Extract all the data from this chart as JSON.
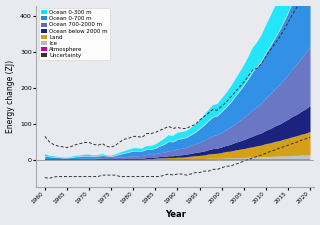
{
  "years": [
    1960,
    1961,
    1962,
    1963,
    1964,
    1965,
    1966,
    1967,
    1968,
    1969,
    1970,
    1971,
    1972,
    1973,
    1974,
    1975,
    1976,
    1977,
    1978,
    1979,
    1980,
    1981,
    1982,
    1983,
    1984,
    1985,
    1986,
    1987,
    1988,
    1989,
    1990,
    1991,
    1992,
    1993,
    1994,
    1995,
    1996,
    1997,
    1998,
    1999,
    2000,
    2001,
    2002,
    2003,
    2004,
    2005,
    2006,
    2007,
    2008,
    2009,
    2010,
    2011,
    2012,
    2013,
    2014,
    2015,
    2016,
    2017,
    2018,
    2019,
    2020
  ],
  "ocean_0_700": [
    8,
    5,
    4,
    3,
    2,
    2,
    3,
    5,
    5,
    6,
    6,
    5,
    5,
    6,
    4,
    3,
    5,
    8,
    10,
    11,
    13,
    13,
    12,
    14,
    14,
    15,
    18,
    22,
    26,
    24,
    27,
    27,
    27,
    29,
    32,
    37,
    42,
    47,
    52,
    52,
    57,
    62,
    68,
    75,
    82,
    89,
    97,
    106,
    110,
    116,
    125,
    133,
    141,
    150,
    160,
    171,
    183,
    193,
    204,
    215,
    228
  ],
  "ocean_0_300": [
    5,
    3,
    2,
    2,
    1,
    1,
    2,
    3,
    3,
    4,
    4,
    3,
    3,
    4,
    2,
    2,
    3,
    5,
    6,
    7,
    8,
    8,
    7,
    9,
    9,
    10,
    12,
    15,
    17,
    16,
    18,
    18,
    18,
    19,
    21,
    24,
    27,
    30,
    33,
    33,
    36,
    39,
    43,
    47,
    51,
    55,
    60,
    66,
    68,
    72,
    77,
    82,
    87,
    92,
    98,
    105,
    112,
    118,
    125,
    132,
    140
  ],
  "ocean_700_2000": [
    2,
    2,
    2,
    2,
    2,
    2,
    2,
    2,
    3,
    3,
    3,
    3,
    3,
    4,
    4,
    4,
    5,
    5,
    5,
    6,
    7,
    7,
    8,
    9,
    9,
    10,
    11,
    12,
    14,
    15,
    17,
    18,
    20,
    22,
    24,
    27,
    30,
    33,
    36,
    38,
    41,
    44,
    48,
    52,
    57,
    62,
    67,
    73,
    78,
    83,
    90,
    97,
    103,
    110,
    117,
    125,
    133,
    141,
    149,
    157,
    166
  ],
  "ocean_below_2000": [
    0,
    0,
    0,
    0,
    0,
    0,
    0,
    0,
    0,
    0,
    0,
    0,
    1,
    1,
    1,
    1,
    1,
    1,
    1,
    2,
    2,
    2,
    2,
    3,
    3,
    3,
    4,
    4,
    5,
    5,
    6,
    7,
    7,
    8,
    9,
    10,
    11,
    12,
    14,
    14,
    16,
    17,
    19,
    21,
    23,
    25,
    27,
    30,
    32,
    34,
    37,
    40,
    43,
    46,
    49,
    53,
    57,
    60,
    64,
    68,
    72
  ],
  "land": [
    0,
    0,
    0,
    0,
    0,
    0,
    0,
    0,
    0,
    0,
    0,
    0,
    0,
    0,
    0,
    0,
    0,
    0,
    1,
    1,
    1,
    1,
    1,
    2,
    2,
    2,
    3,
    3,
    4,
    4,
    5,
    5,
    6,
    7,
    8,
    9,
    10,
    12,
    13,
    14,
    16,
    18,
    19,
    21,
    23,
    25,
    27,
    29,
    31,
    33,
    36,
    38,
    41,
    43,
    46,
    49,
    52,
    55,
    58,
    61,
    65
  ],
  "ice": [
    0,
    0,
    0,
    0,
    0,
    0,
    0,
    0,
    0,
    0,
    0,
    0,
    0,
    0,
    0,
    0,
    0,
    0,
    0,
    0,
    0,
    0,
    0,
    0,
    0,
    1,
    1,
    1,
    1,
    1,
    1,
    1,
    1,
    2,
    2,
    2,
    2,
    3,
    3,
    3,
    3,
    4,
    4,
    5,
    5,
    5,
    6,
    6,
    7,
    7,
    8,
    8,
    9,
    9,
    10,
    10,
    11,
    11,
    12,
    12,
    13
  ],
  "atmosphere": [
    1,
    1,
    1,
    1,
    1,
    1,
    1,
    1,
    1,
    1,
    1,
    1,
    1,
    1,
    1,
    1,
    1,
    1,
    1,
    1,
    1,
    1,
    1,
    1,
    1,
    1,
    1,
    1,
    1,
    1,
    1,
    1,
    1,
    1,
    1,
    1,
    1,
    1,
    1,
    1,
    1,
    1,
    1,
    1,
    1,
    1,
    1,
    1,
    1,
    1,
    1,
    1,
    1,
    1,
    1,
    1,
    1,
    1,
    1,
    1,
    1
  ],
  "uncertainty_upper": [
    65,
    50,
    42,
    38,
    36,
    34,
    37,
    42,
    45,
    48,
    48,
    43,
    40,
    45,
    37,
    35,
    40,
    50,
    57,
    60,
    65,
    65,
    62,
    73,
    73,
    76,
    82,
    87,
    93,
    87,
    90,
    87,
    87,
    93,
    98,
    110,
    120,
    130,
    140,
    138,
    149,
    160,
    174,
    188,
    202,
    216,
    233,
    250,
    255,
    267,
    287,
    306,
    323,
    340,
    360,
    382,
    405,
    425,
    447,
    470,
    495
  ],
  "uncertainty_lower": [
    -50,
    -52,
    -48,
    -47,
    -47,
    -47,
    -47,
    -47,
    -47,
    -47,
    -47,
    -47,
    -47,
    -43,
    -43,
    -43,
    -43,
    -47,
    -47,
    -47,
    -47,
    -47,
    -47,
    -47,
    -47,
    -47,
    -47,
    -43,
    -40,
    -43,
    -40,
    -40,
    -43,
    -40,
    -36,
    -36,
    -32,
    -32,
    -27,
    -27,
    -23,
    -18,
    -18,
    -13,
    -9,
    -4,
    0,
    5,
    9,
    13,
    18,
    23,
    27,
    32,
    36,
    40,
    45,
    49,
    54,
    58,
    63
  ],
  "color_ocean_0_300": "#00e5ff",
  "color_ocean_0_700": "#1e88e5",
  "color_ocean_700_2000": "#5c6bc0",
  "color_ocean_below_2000": "#1a237e",
  "color_land": "#d4a017",
  "color_ice": "#b0bec5",
  "color_atmosphere": "#cc00aa",
  "bg_color": "#e8eaf0",
  "xlabel": "Year",
  "ylabel": "Energy change (ZJ)",
  "ylim": [
    -75,
    430
  ],
  "xlim": [
    1958,
    2021
  ]
}
